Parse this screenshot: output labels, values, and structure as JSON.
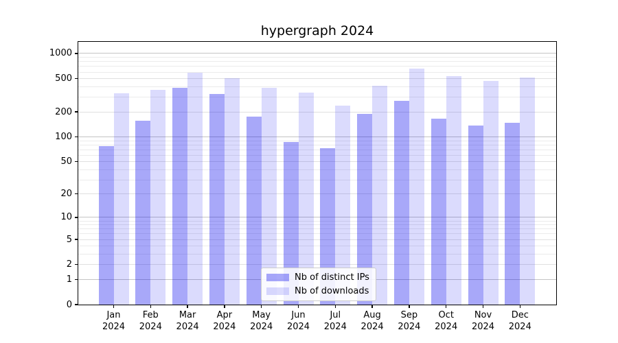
{
  "title": "hypergraph 2024",
  "chart_data": {
    "type": "bar",
    "title": "hypergraph 2024",
    "categories": [
      "Jan 2024",
      "Feb 2024",
      "Mar 2024",
      "Apr 2024",
      "May 2024",
      "Jun 2024",
      "Jul 2024",
      "Aug 2024",
      "Sep 2024",
      "Oct 2024",
      "Nov 2024",
      "Dec 2024"
    ],
    "series": [
      {
        "name": "Nb of distinct IPs",
        "color": "#0000ee",
        "alpha": 0.34,
        "values": [
          78,
          155,
          390,
          330,
          175,
          86,
          73,
          190,
          270,
          165,
          138,
          148
        ]
      },
      {
        "name": "Nb of downloads",
        "color": "#0000ee",
        "alpha": 0.14,
        "values": [
          335,
          365,
          590,
          505,
          385,
          340,
          236,
          410,
          660,
          540,
          470,
          520
        ]
      }
    ],
    "xlabel": "",
    "ylabel": "",
    "yscale": "log1p",
    "ylim": [
      0,
      1405
    ],
    "yticks": [
      0,
      1,
      2,
      5,
      10,
      20,
      50,
      100,
      200,
      500,
      1000
    ],
    "ytick_labels": [
      "0",
      "1",
      "2",
      "5",
      "10",
      "20",
      "50",
      "100",
      "200",
      "500",
      "1000"
    ],
    "grid": "horizontal",
    "legend_position": "lower center"
  },
  "colors": {
    "grid_major": "#c4c4c4",
    "grid_mid": "#e0e0e0",
    "grid_minor": "#ebebeb",
    "spine": "#000000",
    "background": "#ffffff"
  }
}
